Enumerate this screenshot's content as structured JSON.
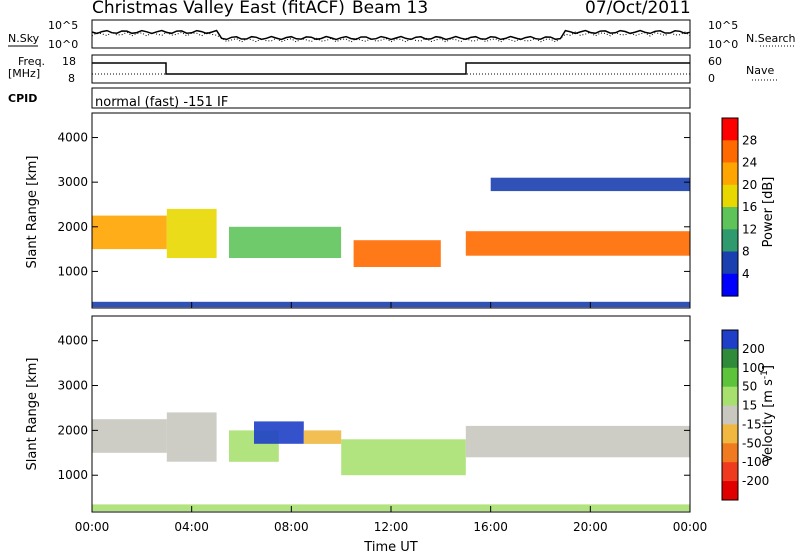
{
  "header": {
    "title": "Christmas Valley East (fitACF)",
    "beam": "Beam 13",
    "date": "07/Oct/2011"
  },
  "params": {
    "nsky_label": "N.Sky",
    "nsearch_label": "N.Search",
    "freq_label": "Freq.",
    "freq_unit": "[MHz]",
    "nave_label": "Nave",
    "cpid_label": "CPID",
    "cpid_value": "normal (fast) -151 IF",
    "noise_ticks": [
      "10^5",
      "10^0"
    ],
    "freq_ticks": [
      "18",
      "8"
    ],
    "nave_ticks": [
      "60",
      "0"
    ]
  },
  "xaxis": {
    "label": "Time UT",
    "ticks": [
      "00:00",
      "04:00",
      "08:00",
      "12:00",
      "16:00",
      "20:00",
      "00:00"
    ]
  },
  "colorbars": {
    "power": {
      "label": "Power [dB]",
      "ticks": [
        "28",
        "24",
        "20",
        "16",
        "12",
        "8",
        "4"
      ],
      "colors": [
        "#ff0000",
        "#ff6a00",
        "#ffa500",
        "#e8d800",
        "#5ec45a",
        "#2f9a6e",
        "#1a3fae",
        "#0000ff"
      ]
    },
    "velocity": {
      "label": "Velocity [m s",
      "label_sup": "-1",
      "label_end": "]",
      "ticks": [
        "200",
        "100",
        "50",
        "15",
        "-15",
        "-50",
        "-100",
        "-200"
      ],
      "colors": [
        "#1f3fc8",
        "#2f8a3a",
        "#5cc33a",
        "#a8e070",
        "#c8c8c0",
        "#f0b840",
        "#f07a20",
        "#f03a20",
        "#e00000"
      ]
    }
  },
  "chart_data": [
    {
      "type": "heatmap",
      "panel": "power",
      "xlabel": "Time UT",
      "ylabel": "Slant Range [km]",
      "xlim": [
        "00:00",
        "24:00"
      ],
      "ylim": [
        180,
        4550
      ],
      "yticks": [
        1000,
        2000,
        3000,
        4000
      ],
      "colorscale_range": [
        0,
        30
      ],
      "colorscale_unit": "dB",
      "echo_bands": [
        {
          "t_start": 0.0,
          "t_end": 3.0,
          "range_start": 1500,
          "range_end": 2250,
          "power": 20
        },
        {
          "t_start": 3.0,
          "t_end": 5.0,
          "range_start": 1300,
          "range_end": 2400,
          "power": 18
        },
        {
          "t_start": 5.5,
          "t_end": 10.0,
          "range_start": 1300,
          "range_end": 2000,
          "power": 14
        },
        {
          "t_start": 10.5,
          "t_end": 14.0,
          "range_start": 1100,
          "range_end": 1700,
          "power": 24
        },
        {
          "t_start": 15.0,
          "t_end": 24.0,
          "range_start": 1350,
          "range_end": 1900,
          "power": 26
        },
        {
          "t_start": 16.0,
          "t_end": 24.0,
          "range_start": 2800,
          "range_end": 3100,
          "power": 6
        },
        {
          "t_start": 0.0,
          "t_end": 24.0,
          "range_start": 200,
          "range_end": 320,
          "power": 6
        }
      ]
    },
    {
      "type": "heatmap",
      "panel": "velocity",
      "xlabel": "Time UT",
      "ylabel": "Slant Range [km]",
      "xlim": [
        "00:00",
        "24:00"
      ],
      "ylim": [
        180,
        4550
      ],
      "yticks": [
        1000,
        2000,
        3000,
        4000
      ],
      "colorscale_range": [
        -250,
        250
      ],
      "colorscale_unit": "m s-1",
      "echo_bands": [
        {
          "t_start": 0.0,
          "t_end": 3.0,
          "range_start": 1500,
          "range_end": 2250,
          "velocity": 0
        },
        {
          "t_start": 3.0,
          "t_end": 5.0,
          "range_start": 1300,
          "range_end": 2400,
          "velocity": 0
        },
        {
          "t_start": 5.5,
          "t_end": 7.5,
          "range_start": 1300,
          "range_end": 2000,
          "velocity": 60
        },
        {
          "t_start": 6.5,
          "t_end": 8.5,
          "range_start": 1700,
          "range_end": 2200,
          "velocity": 220
        },
        {
          "t_start": 8.5,
          "t_end": 10.0,
          "range_start": 1700,
          "range_end": 2000,
          "velocity": -60
        },
        {
          "t_start": 10.0,
          "t_end": 15.0,
          "range_start": 1000,
          "range_end": 1800,
          "velocity": 40
        },
        {
          "t_start": 15.0,
          "t_end": 24.0,
          "range_start": 1400,
          "range_end": 2100,
          "velocity": 0
        },
        {
          "t_start": 0.0,
          "t_end": 24.0,
          "range_start": 200,
          "range_end": 350,
          "velocity": 40
        }
      ]
    }
  ]
}
